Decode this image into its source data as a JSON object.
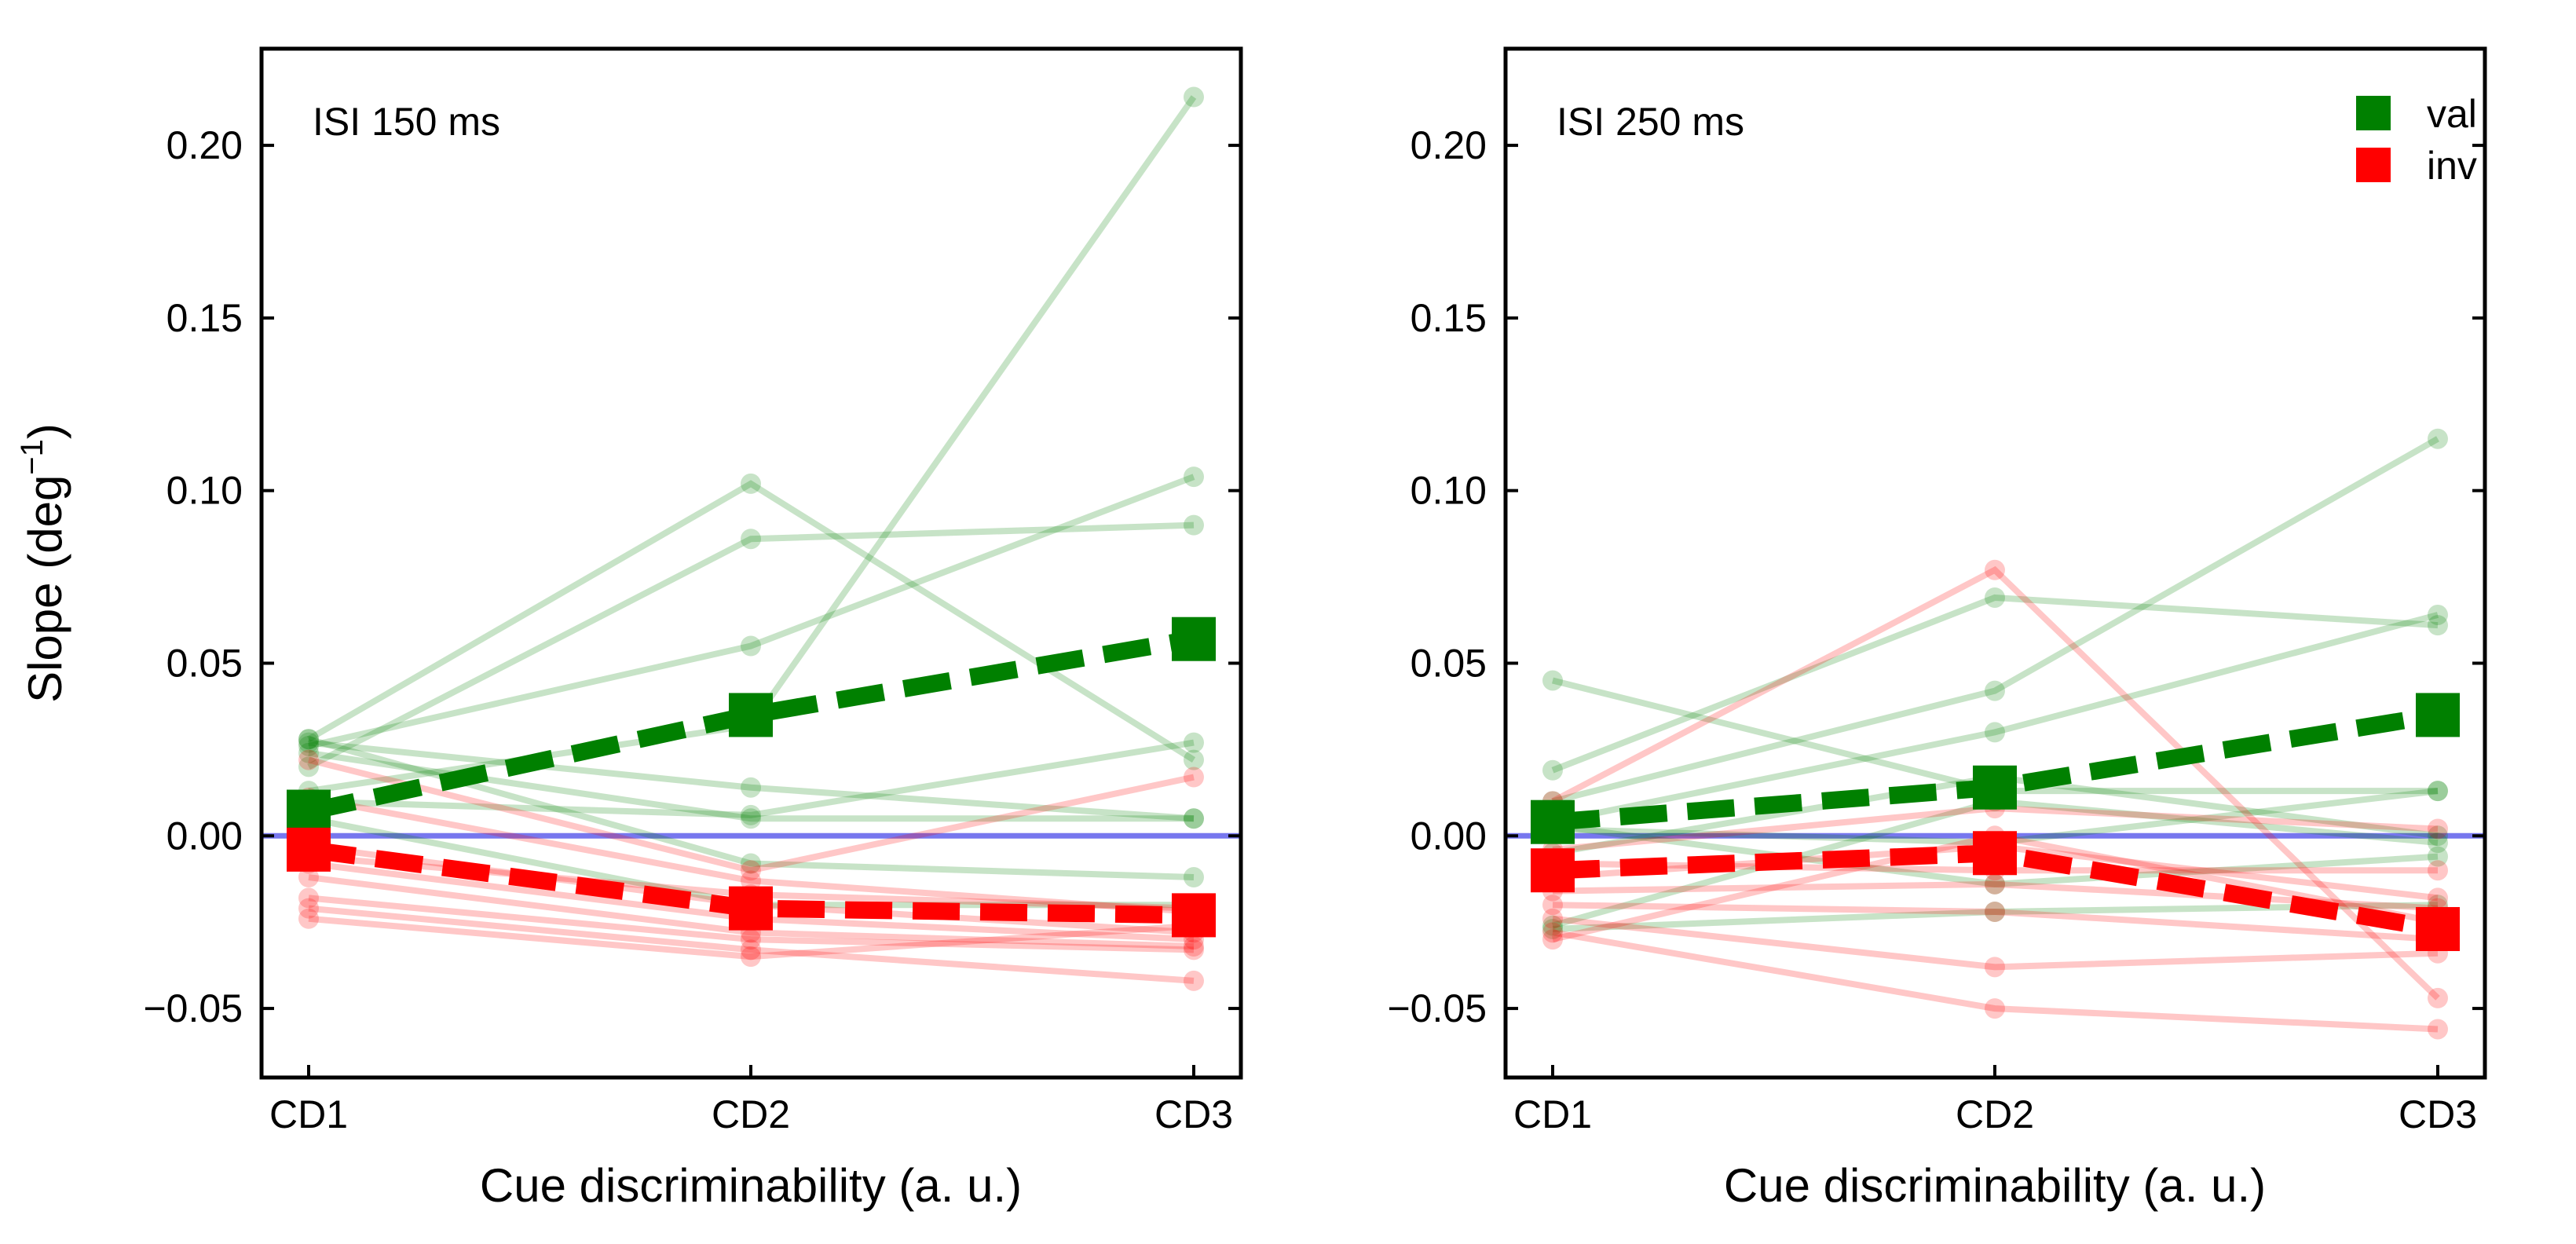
{
  "chart_data": [
    {
      "type": "line",
      "panel_label": "ISI 150 ms",
      "xlabel": "Cue discriminability (a. u.)",
      "ylabel": "Slope (deg",
      "ylabel_sup": "−1",
      "ylabel_close": ")",
      "categories": [
        "CD1",
        "CD2",
        "CD3"
      ],
      "ylim": [
        -0.07,
        0.228
      ],
      "yticks": [
        -0.05,
        0.0,
        0.05,
        0.1,
        0.15,
        0.2
      ],
      "ytick_labels": [
        "−0.05",
        "0.00",
        "0.05",
        "0.10",
        "0.15",
        "0.20"
      ],
      "reference_line": {
        "y": 0.0,
        "color": "#7777ee"
      },
      "legend": null,
      "mean_series": [
        {
          "name": "val",
          "color": "#008000",
          "values": [
            0.007,
            0.035,
            0.057
          ]
        },
        {
          "name": "inv",
          "color": "#ff0000",
          "values": [
            -0.004,
            -0.021,
            -0.023
          ]
        }
      ],
      "subject_series": {
        "val": {
          "color": "#008000",
          "lines": [
            [
              0.028,
              0.102,
              0.022
            ],
            [
              0.02,
              0.086,
              0.09
            ],
            [
              0.026,
              0.055,
              0.104
            ],
            [
              0.013,
              0.032,
              0.214
            ],
            [
              0.027,
              0.014,
              0.005
            ],
            [
              0.024,
              0.005,
              0.005
            ],
            [
              0.01,
              0.006,
              0.027
            ],
            [
              0.028,
              -0.008,
              -0.012
            ],
            [
              0.005,
              -0.02,
              -0.02
            ]
          ]
        },
        "inv": {
          "color": "#ff0000",
          "lines": [
            [
              0.022,
              -0.01,
              0.017
            ],
            [
              0.011,
              -0.013,
              -0.022
            ],
            [
              -0.003,
              -0.02,
              -0.028
            ],
            [
              -0.008,
              -0.024,
              -0.03
            ],
            [
              -0.012,
              -0.028,
              -0.032
            ],
            [
              -0.018,
              -0.03,
              -0.033
            ],
            [
              -0.021,
              -0.033,
              -0.042
            ],
            [
              -0.024,
              -0.035,
              -0.026
            ],
            [
              -0.006,
              -0.017,
              -0.021
            ]
          ]
        }
      }
    },
    {
      "type": "line",
      "panel_label": "ISI 250 ms",
      "xlabel": "Cue discriminability (a. u.)",
      "ylabel": "",
      "categories": [
        "CD1",
        "CD2",
        "CD3"
      ],
      "ylim": [
        -0.07,
        0.228
      ],
      "yticks": [
        -0.05,
        0.0,
        0.05,
        0.1,
        0.15,
        0.2
      ],
      "ytick_labels": [
        "−0.05",
        "0.00",
        "0.05",
        "0.10",
        "0.15",
        "0.20"
      ],
      "reference_line": {
        "y": 0.0,
        "color": "#7777ee"
      },
      "legend": {
        "position": "top-right",
        "entries": [
          {
            "label": "val",
            "color": "#008000"
          },
          {
            "label": "inv",
            "color": "#ff0000"
          }
        ]
      },
      "mean_series": [
        {
          "name": "val",
          "color": "#008000",
          "values": [
            0.004,
            0.014,
            0.035
          ]
        },
        {
          "name": "inv",
          "color": "#ff0000",
          "values": [
            -0.01,
            -0.005,
            -0.027
          ]
        }
      ],
      "subject_series": {
        "val": {
          "color": "#008000",
          "lines": [
            [
              0.045,
              0.013,
              0.013
            ],
            [
              0.019,
              0.069,
              0.061
            ],
            [
              0.01,
              0.042,
              0.115
            ],
            [
              0.004,
              0.03,
              0.064
            ],
            [
              0.002,
              -0.002,
              0.013
            ],
            [
              -0.026,
              0.01,
              -0.002
            ],
            [
              -0.027,
              -0.022,
              -0.02
            ],
            [
              0.003,
              -0.014,
              -0.006
            ],
            [
              -0.005,
              0.017,
              0.0
            ]
          ]
        },
        "inv": {
          "color": "#ff0000",
          "lines": [
            [
              0.01,
              0.077,
              -0.047
            ],
            [
              -0.004,
              0.008,
              0.002
            ],
            [
              -0.008,
              -0.01,
              -0.01
            ],
            [
              -0.012,
              -0.003,
              -0.018
            ],
            [
              -0.016,
              -0.014,
              -0.021
            ],
            [
              -0.02,
              -0.022,
              -0.03
            ],
            [
              -0.024,
              -0.038,
              -0.034
            ],
            [
              -0.028,
              -0.05,
              -0.056
            ],
            [
              -0.03,
              0.0,
              -0.025
            ]
          ]
        }
      }
    }
  ]
}
